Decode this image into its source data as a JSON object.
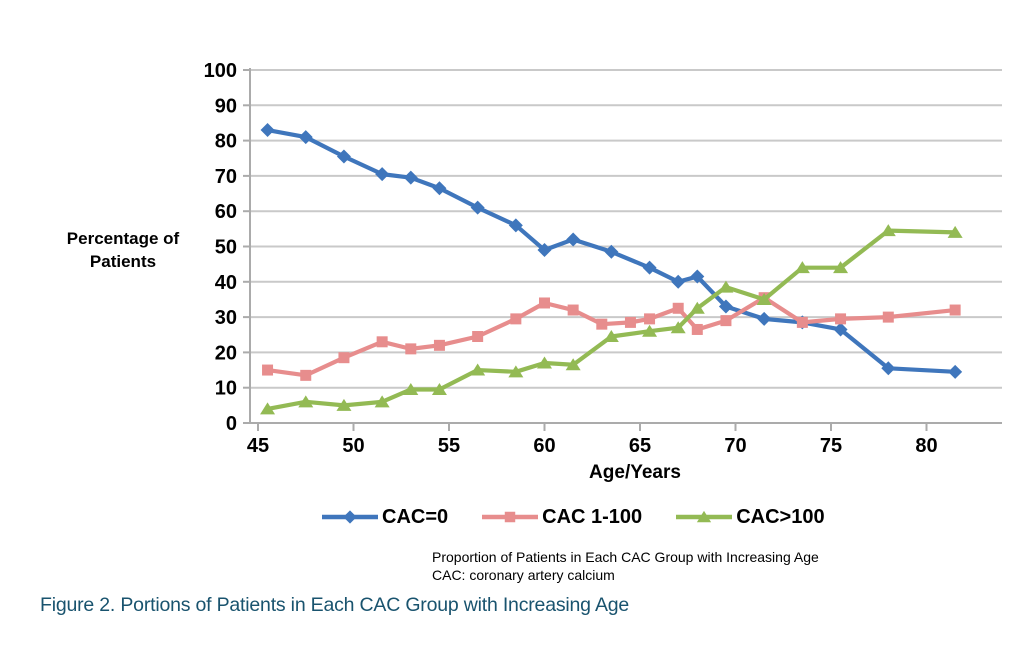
{
  "figure": {
    "caption_line1": "Proportion of Patients in Each CAC Group with Increasing Age",
    "caption_line2": "CAC: coronary artery calcium",
    "figure_caption": "Figure 2. Portions of Patients in Each CAC Group with Increasing Age",
    "figure_caption_color": "#19536E",
    "caption_color": "#000000"
  },
  "chart_data": {
    "type": "line",
    "title": "",
    "xlabel": "Age/Years",
    "ylabel": "Percentage of Patients",
    "xlim": [
      44.6,
      84
    ],
    "ylim": [
      0,
      100
    ],
    "x_ticks": [
      45,
      50,
      55,
      60,
      65,
      70,
      75,
      80
    ],
    "y_ticks": [
      0,
      10,
      20,
      30,
      40,
      50,
      60,
      70,
      80,
      90,
      100
    ],
    "grid": "horizontal-only",
    "gridline_color": "#C9C9C9",
    "axis_color": "#ABABAB",
    "tick_label_color": "#000000",
    "legend_position": "bottom",
    "series": [
      {
        "name": "CAC=0",
        "marker": "diamond",
        "color": "#3F76BC",
        "points": [
          [
            45.5,
            83
          ],
          [
            47.5,
            81
          ],
          [
            49.5,
            75.5
          ],
          [
            51.5,
            70.5
          ],
          [
            53,
            69.5
          ],
          [
            54.5,
            66.5
          ],
          [
            56.5,
            61
          ],
          [
            58.5,
            56
          ],
          [
            60,
            49
          ],
          [
            61.5,
            52
          ],
          [
            63.5,
            48.5
          ],
          [
            65.5,
            44
          ],
          [
            67,
            40
          ],
          [
            68,
            41.5
          ],
          [
            69.5,
            33
          ],
          [
            71.5,
            29.5
          ],
          [
            73.5,
            28.5
          ],
          [
            75.5,
            26.5
          ],
          [
            78,
            15.5
          ],
          [
            81.5,
            14.5
          ]
        ]
      },
      {
        "name": "CAC 1-100",
        "marker": "square",
        "color": "#E78D8D",
        "points": [
          [
            45.5,
            15
          ],
          [
            47.5,
            13.5
          ],
          [
            49.5,
            18.5
          ],
          [
            51.5,
            23
          ],
          [
            53,
            21
          ],
          [
            54.5,
            22
          ],
          [
            56.5,
            24.5
          ],
          [
            58.5,
            29.5
          ],
          [
            60,
            34
          ],
          [
            61.5,
            32
          ],
          [
            63,
            28
          ],
          [
            64.5,
            28.5
          ],
          [
            65.5,
            29.5
          ],
          [
            67,
            32.5
          ],
          [
            68,
            26.5
          ],
          [
            69.5,
            29
          ],
          [
            71.5,
            35.5
          ],
          [
            73.5,
            28.5
          ],
          [
            75.5,
            29.5
          ],
          [
            78,
            30
          ],
          [
            81.5,
            32
          ]
        ]
      },
      {
        "name": "CAC>100",
        "marker": "triangle",
        "color": "#93BA54",
        "points": [
          [
            45.5,
            4
          ],
          [
            47.5,
            6
          ],
          [
            49.5,
            5
          ],
          [
            51.5,
            6
          ],
          [
            53,
            9.5
          ],
          [
            54.5,
            9.5
          ],
          [
            56.5,
            15
          ],
          [
            58.5,
            14.5
          ],
          [
            60,
            17
          ],
          [
            61.5,
            16.5
          ],
          [
            63.5,
            24.5
          ],
          [
            65.5,
            26
          ],
          [
            67,
            27
          ],
          [
            68,
            32.5
          ],
          [
            69.5,
            38.5
          ],
          [
            71.5,
            35
          ],
          [
            73.5,
            44
          ],
          [
            75.5,
            44
          ],
          [
            78,
            54.5
          ],
          [
            81.5,
            54
          ]
        ]
      }
    ]
  }
}
